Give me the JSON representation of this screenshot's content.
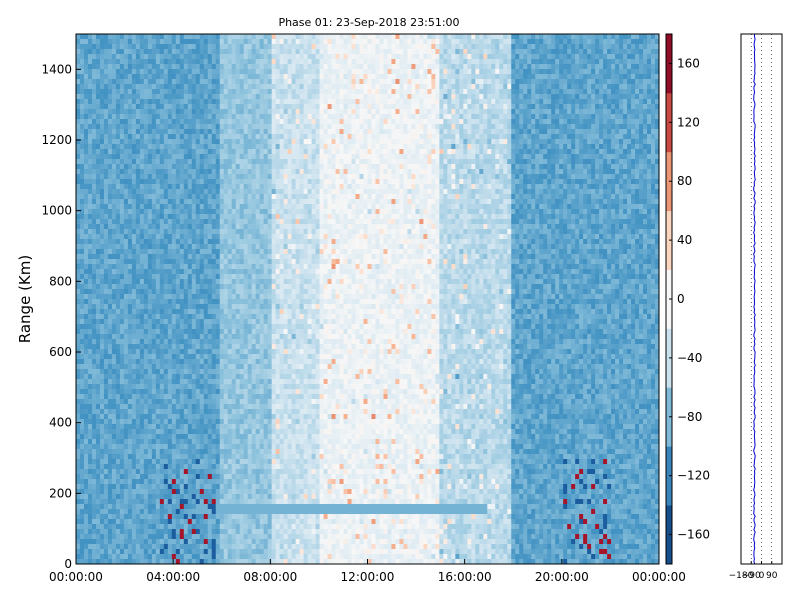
{
  "chart_data": [
    {
      "type": "heatmap",
      "title": "Phase 01: 23-Sep-2018 23:51:00",
      "xlabel": "",
      "ylabel": "Range (Km)",
      "x_ticks": [
        "00:00:00",
        "04:00:00",
        "08:00:00",
        "12:00:00",
        "16:00:00",
        "20:00:00",
        "00:00:00"
      ],
      "y_ticks": [
        0,
        200,
        400,
        600,
        800,
        1000,
        1200,
        1400
      ],
      "xlim": [
        "00:00:00",
        "24:00:00"
      ],
      "ylim": [
        0,
        1500
      ],
      "colormap": "RdBu_r",
      "colorbar": {
        "range": [
          -180,
          180
        ],
        "ticks": [
          -160,
          -120,
          -80,
          -40,
          0,
          40,
          80,
          120,
          160
        ]
      },
      "bands": [
        {
          "x_range": [
            "00:00:00",
            "06:00:00"
          ],
          "typical_value": -95
        },
        {
          "x_range": [
            "06:00:00",
            "08:00:00"
          ],
          "typical_value": -70
        },
        {
          "x_range": [
            "08:00:00",
            "10:00:00"
          ],
          "typical_value": -40
        },
        {
          "x_range": [
            "10:00:00",
            "15:00:00"
          ],
          "typical_value": -10
        },
        {
          "x_range": [
            "15:00:00",
            "18:00:00"
          ],
          "typical_value": -50
        },
        {
          "x_range": [
            "18:00:00",
            "24:00:00"
          ],
          "typical_value": -95
        }
      ],
      "features": [
        {
          "label": "horizontal stripe",
          "range_km": 155,
          "x_range": [
            "05:00:00",
            "17:00:00"
          ],
          "value": -85
        },
        {
          "label": "speckle cluster",
          "range_km": [
            0,
            300
          ],
          "x_range": [
            "03:30:00",
            "05:45:00"
          ]
        },
        {
          "label": "speckle cluster",
          "range_km": [
            0,
            300
          ],
          "x_range": [
            "20:00:00",
            "22:00:00"
          ]
        }
      ]
    },
    {
      "type": "line",
      "title": "",
      "x_ticks": [
        -180,
        -90,
        0,
        90
      ],
      "xlim": [
        -180,
        180
      ],
      "ylim": [
        0,
        1500
      ],
      "gridlines_x": [
        -90,
        0,
        90
      ],
      "series_color": "#0000cc",
      "profile_mean": -62
    }
  ]
}
